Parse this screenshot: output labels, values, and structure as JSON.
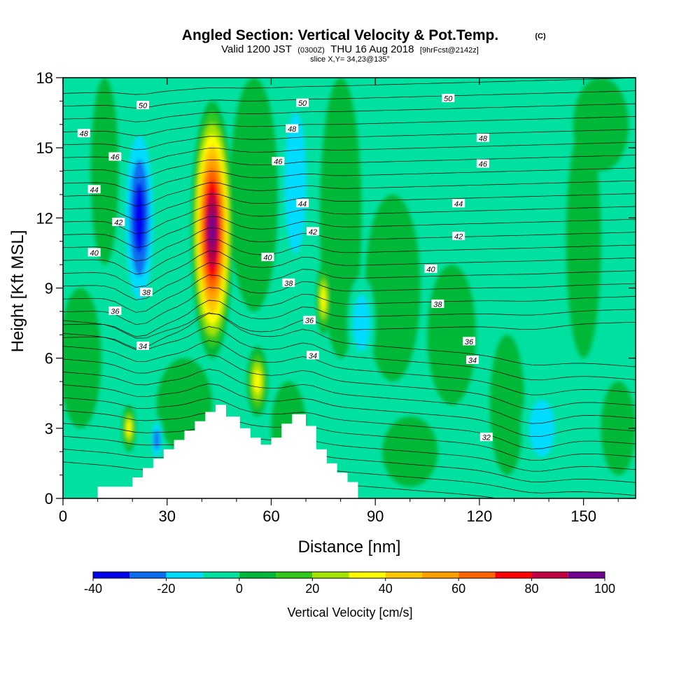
{
  "title": {
    "main": "Angled Section: Vertical Velocity & Pot.Temp.",
    "main_suffix": "(C)",
    "valid_prefix": "Valid 1200 JST",
    "valid_utc": "(0300Z)",
    "valid_date": "THU 16 Aug 2018",
    "forecast": "[9hrFcst@2142z]",
    "slice": "slice X,Y= 34,23@135°"
  },
  "colors": {
    "v_m40": "#0000ee",
    "v_m30": "#0a6cf0",
    "v_m20": "#00dcff",
    "v_m10": "#00e0a0",
    "v_0": "#00b838",
    "v_10": "#33c81c",
    "v_20": "#a5e400",
    "v_30": "#ffff00",
    "v_40": "#ffc800",
    "v_50": "#ffa000",
    "v_60": "#ff6400",
    "v_70": "#ff0000",
    "v_80": "#c00040",
    "v_90": "#9c005a",
    "v_100": "#700090",
    "terrain": "#ffffff",
    "contour": "#000000"
  },
  "chart_data": {
    "type": "heatmap",
    "title": "Angled Section: Vertical Velocity & Pot.Temp. (C)",
    "xlabel": "Distance [nm]",
    "ylabel": "Height [Kft MSL]",
    "xlim": [
      0,
      165
    ],
    "ylim": [
      0,
      18
    ],
    "x_ticks": [
      "0",
      "30",
      "60",
      "90",
      "120",
      "150"
    ],
    "x_tick_values": [
      0,
      30,
      60,
      90,
      120,
      150
    ],
    "y_ticks": [
      "0",
      "3",
      "6",
      "9",
      "12",
      "15",
      "18"
    ],
    "y_tick_values": [
      0,
      3,
      6,
      9,
      12,
      15,
      18
    ],
    "colorbar": {
      "title": "Vertical Velocity [cm/s]",
      "levels": [
        -40,
        -30,
        -20,
        -10,
        0,
        10,
        20,
        30,
        40,
        50,
        60,
        70,
        80,
        90,
        100
      ],
      "tick_labels": [
        "-40",
        "-20",
        "0",
        "20",
        "40",
        "60",
        "80",
        "100"
      ],
      "tick_values": [
        -40,
        -20,
        0,
        20,
        40,
        60,
        80,
        100
      ],
      "colors": [
        "#0000ee",
        "#0a6cf0",
        "#00dcff",
        "#00e0a0",
        "#00b838",
        "#33c81c",
        "#a5e400",
        "#ffff00",
        "#ffc800",
        "#ffa000",
        "#ff6400",
        "#ff0000",
        "#c00040",
        "#700090"
      ]
    },
    "vertical_velocity_features": [
      {
        "kind": "downdraft",
        "x_center": 22,
        "y_center": 12.0,
        "x_half_width": 5,
        "y_half_height": 4.5,
        "peak": -40
      },
      {
        "kind": "updraft",
        "x_center": 43,
        "y_center": 11.5,
        "x_half_width": 6,
        "y_half_height": 5.5,
        "peak": 100
      },
      {
        "kind": "downdraft",
        "x_center": 67,
        "y_center": 13.5,
        "x_half_width": 5,
        "y_half_height": 5,
        "peak": -20
      },
      {
        "kind": "downdraft",
        "x_center": 86,
        "y_center": 7.5,
        "x_half_width": 4,
        "y_half_height": 2,
        "peak": -20
      },
      {
        "kind": "updraft",
        "x_center": 75,
        "y_center": 8.5,
        "x_half_width": 2,
        "y_half_height": 1.5,
        "peak": 30
      },
      {
        "kind": "updraft",
        "x_center": 56,
        "y_center": 5.0,
        "x_half_width": 3,
        "y_half_height": 1.5,
        "peak": 30
      },
      {
        "kind": "updraft",
        "x_center": 19,
        "y_center": 3.0,
        "x_half_width": 2,
        "y_half_height": 1.0,
        "peak": 30
      },
      {
        "kind": "downdraft",
        "x_center": 27,
        "y_center": 2.5,
        "x_half_width": 2,
        "y_half_height": 1.0,
        "peak": -30
      },
      {
        "kind": "downdraft",
        "x_center": 138,
        "y_center": 3.0,
        "x_half_width": 6,
        "y_half_height": 2,
        "peak": -20
      }
    ],
    "terrain": {
      "x": [
        10,
        10,
        20,
        20,
        23,
        23,
        26,
        26,
        29,
        29,
        32,
        32,
        35,
        35,
        38,
        38,
        41,
        41,
        44,
        44,
        47,
        47,
        51,
        51,
        54,
        54,
        57,
        57,
        60,
        60,
        63,
        63,
        66,
        66,
        70,
        70,
        73,
        73,
        76,
        76,
        79,
        79,
        82,
        82,
        85,
        85
      ],
      "y": [
        0,
        0.5,
        0.5,
        0.9,
        0.9,
        1.3,
        1.3,
        1.7,
        1.7,
        2.1,
        2.1,
        2.5,
        2.5,
        2.9,
        2.9,
        3.3,
        3.3,
        3.7,
        3.7,
        4.0,
        4.0,
        3.5,
        3.5,
        3.0,
        3.0,
        2.6,
        2.6,
        2.3,
        2.3,
        2.6,
        2.6,
        3.2,
        3.2,
        3.6,
        3.6,
        3.1,
        3.1,
        2.1,
        2.1,
        1.5,
        1.5,
        1.1,
        1.1,
        0.7,
        0.7,
        0
      ]
    },
    "contour_labels": [
      {
        "text": "50",
        "x": 23,
        "y": 16.8
      },
      {
        "text": "48",
        "x": 6,
        "y": 15.6
      },
      {
        "text": "46",
        "x": 15,
        "y": 14.6
      },
      {
        "text": "44",
        "x": 9,
        "y": 13.2
      },
      {
        "text": "42",
        "x": 16,
        "y": 11.8
      },
      {
        "text": "40",
        "x": 9,
        "y": 10.5
      },
      {
        "text": "38",
        "x": 24,
        "y": 8.8
      },
      {
        "text": "36",
        "x": 15,
        "y": 8.0
      },
      {
        "text": "34",
        "x": 23,
        "y": 6.5
      },
      {
        "text": "50",
        "x": 69,
        "y": 16.9
      },
      {
        "text": "48",
        "x": 66,
        "y": 15.8
      },
      {
        "text": "46",
        "x": 62,
        "y": 14.4
      },
      {
        "text": "44",
        "x": 69,
        "y": 12.6
      },
      {
        "text": "42",
        "x": 72,
        "y": 11.4
      },
      {
        "text": "40",
        "x": 59,
        "y": 10.3
      },
      {
        "text": "38",
        "x": 65,
        "y": 9.2
      },
      {
        "text": "36",
        "x": 71,
        "y": 7.6
      },
      {
        "text": "34",
        "x": 72,
        "y": 6.1
      },
      {
        "text": "50",
        "x": 111,
        "y": 17.1
      },
      {
        "text": "48",
        "x": 121,
        "y": 15.4
      },
      {
        "text": "46",
        "x": 121,
        "y": 14.3
      },
      {
        "text": "44",
        "x": 114,
        "y": 12.6
      },
      {
        "text": "42",
        "x": 114,
        "y": 11.2
      },
      {
        "text": "40",
        "x": 106,
        "y": 9.8
      },
      {
        "text": "38",
        "x": 108,
        "y": 8.3
      },
      {
        "text": "36",
        "x": 117,
        "y": 6.7
      },
      {
        "text": "34",
        "x": 118,
        "y": 5.9
      },
      {
        "text": "32",
        "x": 122,
        "y": 2.6
      }
    ]
  }
}
